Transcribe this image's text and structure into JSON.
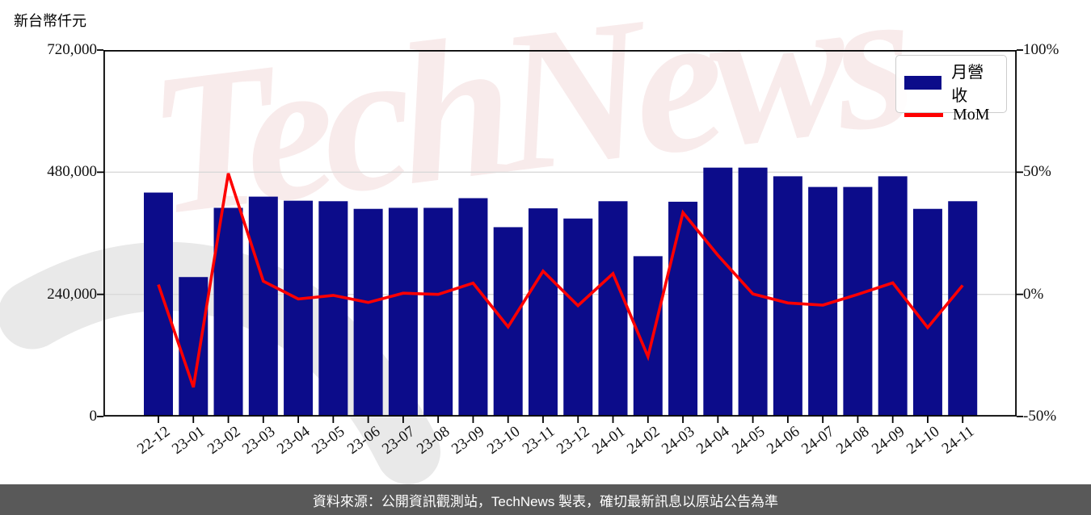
{
  "page": {
    "title": "新台幣仟元",
    "watermark": "TechNews",
    "footer": "資料來源：公開資訊觀測站，TechNews 製表，確切最新訊息以原站公告為準"
  },
  "legend": {
    "bar_label": "月營收",
    "line_label": "MoM"
  },
  "colors": {
    "bar": "#0c0c8a",
    "line": "#fe0000",
    "grid": "#d9d9d9",
    "axis": "#000000",
    "footer_bg": "#595959",
    "footer_text": "#ffffff",
    "watermark_pink": "#f3dada",
    "watermark_gray": "#e9e9e9"
  },
  "chart_data": {
    "type": "bar",
    "categories": [
      "22-12",
      "23-01",
      "23-02",
      "23-03",
      "23-04",
      "23-05",
      "23-06",
      "23-07",
      "23-08",
      "23-09",
      "23-10",
      "23-11",
      "23-12",
      "24-01",
      "24-02",
      "24-03",
      "24-04",
      "24-05",
      "24-06",
      "24-07",
      "24-08",
      "24-09",
      "24-10",
      "24-11"
    ],
    "series": [
      {
        "name": "月營收",
        "type": "bar",
        "axis": "left",
        "unit": "新台幣仟元",
        "values": [
          440000,
          274000,
          410000,
          432000,
          424000,
          423000,
          408000,
          410000,
          410000,
          429000,
          372000,
          409000,
          389000,
          423000,
          315000,
          422000,
          489000,
          489000,
          472000,
          451000,
          451000,
          472000,
          408000,
          423000
        ]
      },
      {
        "name": "MoM",
        "type": "line",
        "axis": "right",
        "unit": "%",
        "values": [
          4.0,
          -38.0,
          49.5,
          5.4,
          -1.9,
          -0.4,
          -3.3,
          0.5,
          0.0,
          4.6,
          -13.3,
          9.5,
          -4.6,
          8.5,
          -25.5,
          33.5,
          16.0,
          0.2,
          -3.5,
          -4.4,
          0.0,
          4.7,
          -13.6,
          3.7
        ]
      }
    ],
    "left_axis": {
      "label": "新台幣仟元",
      "tick_labels": [
        "720,000",
        "480,000",
        "240,000",
        "0"
      ],
      "tick_values": [
        720000,
        480000,
        240000,
        0
      ],
      "range": [
        0,
        720000
      ]
    },
    "right_axis": {
      "tick_labels": [
        "100%",
        "50%",
        "0%",
        "-50%"
      ],
      "tick_values": [
        100,
        50,
        0,
        -50
      ],
      "range": [
        -50,
        100
      ]
    },
    "grid": "horizontal",
    "legend_position": "top-right"
  }
}
